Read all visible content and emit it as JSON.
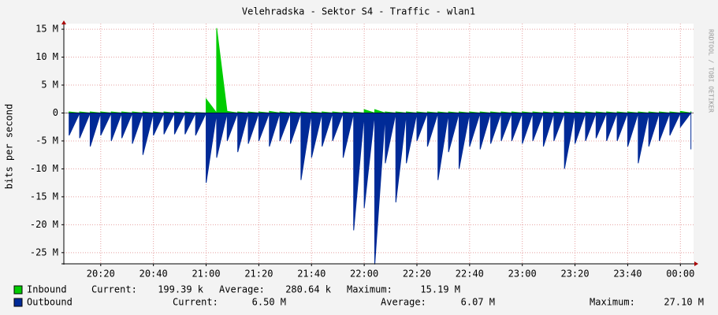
{
  "chart_data": {
    "type": "area",
    "title": "Velehradska - Sektor S4 - Traffic - wlan1",
    "y_label": "bits per second",
    "watermark": "RRDTOOL / TOBI OETIKER",
    "xlim": [
      1206,
      1445
    ],
    "xticks": [
      {
        "value": 1220,
        "label": "20:20"
      },
      {
        "value": 1240,
        "label": "20:40"
      },
      {
        "value": 1260,
        "label": "21:00"
      },
      {
        "value": 1280,
        "label": "21:20"
      },
      {
        "value": 1300,
        "label": "21:40"
      },
      {
        "value": 1320,
        "label": "22:00"
      },
      {
        "value": 1340,
        "label": "22:20"
      },
      {
        "value": 1360,
        "label": "22:40"
      },
      {
        "value": 1380,
        "label": "23:00"
      },
      {
        "value": 1400,
        "label": "23:20"
      },
      {
        "value": 1420,
        "label": "23:40"
      },
      {
        "value": 1440,
        "label": "00:00"
      }
    ],
    "ylim": [
      -27,
      16
    ],
    "yticks": [
      {
        "value": 15,
        "label": "15 M"
      },
      {
        "value": 10,
        "label": "10 M"
      },
      {
        "value": 5,
        "label": "5 M"
      },
      0,
      {
        "value": -5,
        "label": "-5 M"
      },
      {
        "value": -10,
        "label": "-10 M"
      },
      {
        "value": -15,
        "label": "-15 M"
      },
      {
        "value": -20,
        "label": "-20 M"
      },
      {
        "value": -25,
        "label": "-25 M"
      }
    ],
    "grid": true,
    "x": [
      1208,
      1212,
      1216,
      1220,
      1224,
      1228,
      1232,
      1236,
      1240,
      1244,
      1248,
      1252,
      1256,
      1260,
      1264,
      1268,
      1272,
      1276,
      1280,
      1284,
      1288,
      1292,
      1296,
      1300,
      1304,
      1308,
      1312,
      1316,
      1320,
      1324,
      1328,
      1332,
      1336,
      1340,
      1344,
      1348,
      1352,
      1356,
      1360,
      1364,
      1368,
      1372,
      1376,
      1380,
      1384,
      1388,
      1392,
      1396,
      1400,
      1404,
      1408,
      1412,
      1416,
      1420,
      1424,
      1428,
      1432,
      1436,
      1440,
      1444
    ],
    "series": [
      {
        "name": "Inbound",
        "color": "#00cc00",
        "values": [
          0.2,
          0.2,
          0.2,
          0.2,
          0.2,
          0.2,
          0.2,
          0.2,
          0.2,
          0.2,
          0.2,
          0.2,
          0.1,
          2.5,
          15.19,
          0.3,
          0.2,
          0.2,
          0.2,
          0.3,
          0.2,
          0.2,
          0.2,
          0.2,
          0.2,
          0.2,
          0.2,
          0.2,
          0.6,
          0.6,
          0.2,
          0.2,
          0.2,
          0.2,
          0.2,
          0.2,
          0.2,
          0.2,
          0.2,
          0.2,
          0.2,
          0.2,
          0.2,
          0.2,
          0.2,
          0.2,
          0.2,
          0.2,
          0.2,
          0.2,
          0.2,
          0.2,
          0.2,
          0.2,
          0.2,
          0.2,
          0.2,
          0.2,
          0.3,
          0.3
        ],
        "stats": [
          {
            "label": "Current:",
            "value": "199.39 k"
          },
          {
            "label": "Average:",
            "value": "280.64 k"
          },
          {
            "label": "Maximum:",
            "value": "15.19 M"
          }
        ]
      },
      {
        "name": "Outbound",
        "color": "#002a97",
        "values": [
          -4,
          -4.5,
          -6,
          -4,
          -5,
          -4.5,
          -5.5,
          -7.5,
          -4,
          -3.8,
          -3.8,
          -3.8,
          -4,
          -12.5,
          -8,
          -5,
          -7,
          -5.5,
          -5,
          -6,
          -5,
          -5.5,
          -12,
          -8,
          -6,
          -5,
          -8,
          -21,
          -17,
          -27.1,
          -9,
          -16,
          -9,
          -5,
          -6,
          -12,
          -7,
          -10,
          -6,
          -6.5,
          -5.5,
          -5,
          -5,
          -5.5,
          -5,
          -6,
          -5,
          -10,
          -5.5,
          -5,
          -4.5,
          -5,
          -5,
          -6,
          -9,
          -6,
          -5,
          -4,
          -2.5,
          -6.5
        ],
        "stats": [
          {
            "label": "Current:",
            "value": "6.50 M"
          },
          {
            "label": "Average:",
            "value": "6.07 M"
          },
          {
            "label": "Maximum:",
            "value": "27.10 M"
          }
        ]
      }
    ]
  }
}
